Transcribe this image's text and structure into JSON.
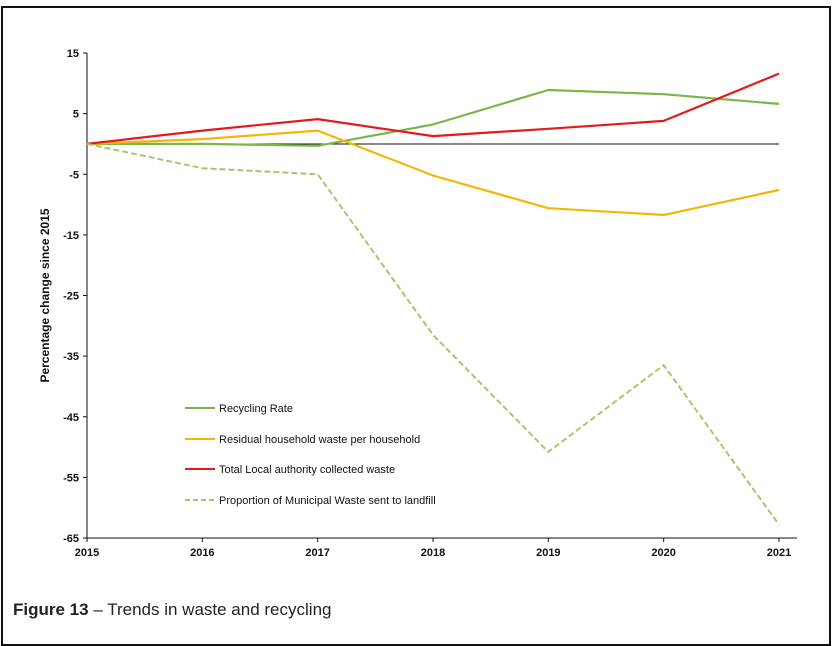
{
  "caption": {
    "label": "Figure 13",
    "sep": "–",
    "text": "Trends in waste and recycling"
  },
  "chart_data": {
    "type": "line",
    "title": "",
    "ylabel": "Percentage change since 2015",
    "xlabel": "",
    "x": [
      "2015",
      "2016",
      "2017",
      "2018",
      "2019",
      "2020",
      "2021"
    ],
    "ylim": [
      -65,
      15
    ],
    "yticks": [
      15,
      5,
      -5,
      -15,
      -25,
      -35,
      -45,
      -55,
      -65
    ],
    "grid": false,
    "legend_position": "lower-left",
    "series": [
      {
        "name": "Recycling Rate",
        "values": [
          0,
          0,
          -0.3,
          3.2,
          8.9,
          8.2,
          6.6
        ],
        "color": "#7ab648",
        "dash": false
      },
      {
        "name": "Residual household waste per household",
        "values": [
          0,
          0.8,
          2.2,
          -5.2,
          -10.6,
          -11.7,
          -7.6
        ],
        "color": "#f2b705",
        "dash": false
      },
      {
        "name": "Total Local authority collected waste",
        "values": [
          0,
          2.2,
          4.1,
          1.3,
          2.5,
          3.8,
          11.6
        ],
        "color": "#e31a1c",
        "dash": false
      },
      {
        "name": "Proportion of Municipal Waste sent to landfill",
        "values": [
          0,
          -4.0,
          -5.0,
          -31.5,
          -50.8,
          -36.5,
          -62.8
        ],
        "color": "#a3c96d",
        "dash": true
      }
    ]
  }
}
